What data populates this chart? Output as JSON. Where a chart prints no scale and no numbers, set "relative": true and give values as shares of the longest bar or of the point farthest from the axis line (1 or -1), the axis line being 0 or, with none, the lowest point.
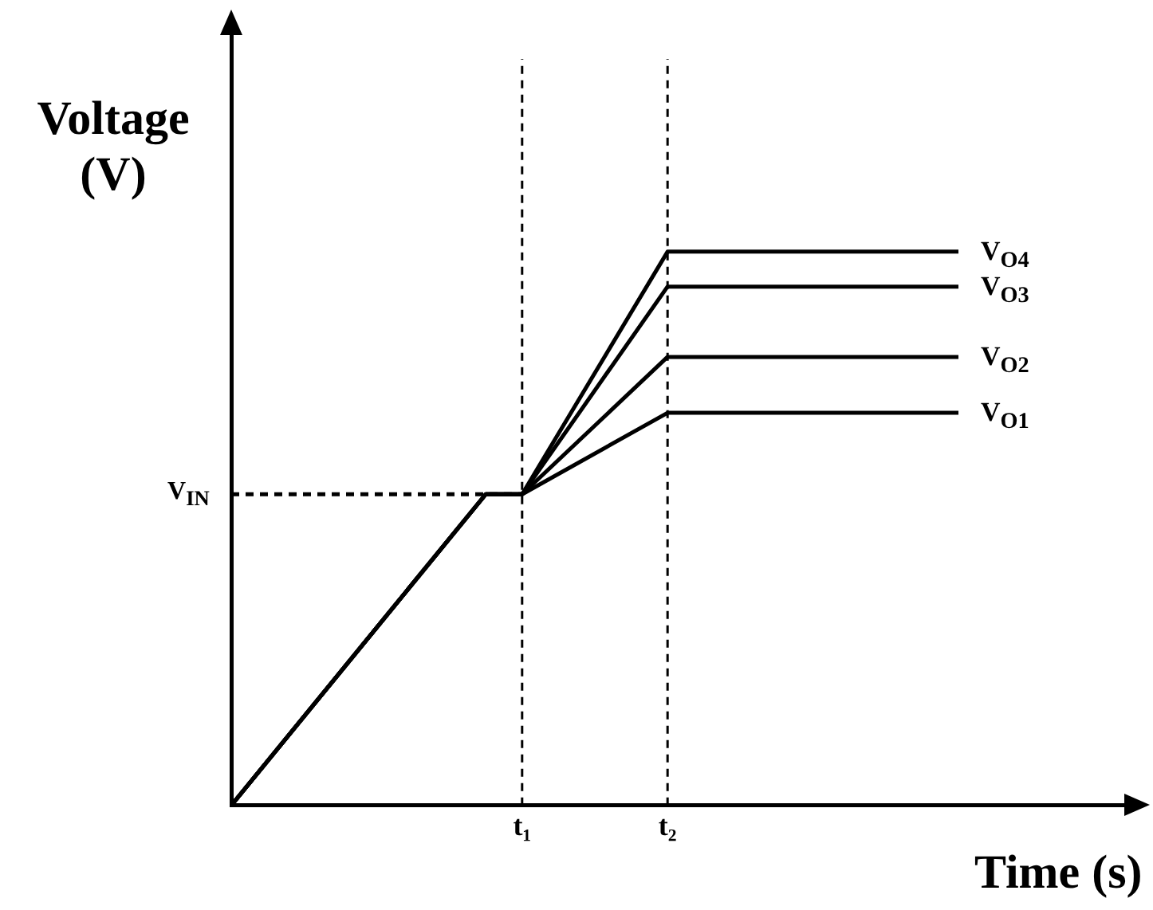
{
  "chart_data": {
    "type": "line",
    "relative": true,
    "xlabel": "Time (s)",
    "ylabel": "Voltage (V)",
    "categories": [
      null,
      null,
      null,
      null,
      null,
      null,
      null,
      null,
      "t₁",
      null,
      null,
      null,
      "t₂",
      null,
      null,
      null,
      null,
      null,
      null,
      null,
      null,
      null,
      null,
      null,
      null,
      null
    ],
    "series": [
      {
        "name": "V$_{O1}$",
        "color": "#000000",
        "values": [
          0,
          null,
          null,
          null,
          null,
          null,
          null,
          0.562,
          0.562,
          null,
          null,
          null,
          0.709,
          null,
          null,
          null,
          null,
          null,
          null,
          null,
          0.709,
          null,
          null,
          null,
          null,
          null
        ]
      },
      {
        "name": "V$_{O2}$",
        "color": "#000000",
        "values": [
          0,
          null,
          null,
          null,
          null,
          null,
          null,
          0.562,
          0.562,
          null,
          null,
          null,
          0.81,
          null,
          null,
          null,
          null,
          null,
          null,
          null,
          0.81,
          null,
          null,
          null,
          null,
          null
        ]
      },
      {
        "name": "V$_{O3}$",
        "color": "#000000",
        "values": [
          0,
          null,
          null,
          null,
          null,
          null,
          null,
          0.562,
          0.562,
          null,
          null,
          null,
          0.937,
          null,
          null,
          null,
          null,
          null,
          null,
          null,
          0.937,
          null,
          null,
          null,
          null,
          null
        ]
      },
      {
        "name": "V$_{O4}$",
        "color": "#000000",
        "values": [
          0,
          null,
          null,
          null,
          null,
          null,
          null,
          0.562,
          0.562,
          null,
          null,
          null,
          1,
          null,
          null,
          null,
          null,
          null,
          null,
          null,
          1,
          null,
          null,
          null,
          null,
          null
        ]
      },
      {
        "color": "#000000",
        "line_style": "dashed",
        "values": [
          0.562,
          null,
          null,
          null,
          null,
          null,
          null,
          null,
          0.562,
          null,
          null,
          null,
          null,
          null,
          null,
          null,
          null,
          null,
          null,
          null,
          null,
          null,
          null,
          null,
          null,
          null
        ]
      }
    ],
    "ref_lines": [
      {
        "axis": "x",
        "value": "t₁",
        "line_style": "dashed",
        "color": "#000000"
      },
      {
        "axis": "x",
        "value": "t₂",
        "line_style": "dashed",
        "color": "#000000"
      }
    ],
    "annotations": [
      "V$_{IN}$"
    ],
    "grid": false,
    "legend": false,
    "marker": "none",
    "line_style": "solid"
  }
}
